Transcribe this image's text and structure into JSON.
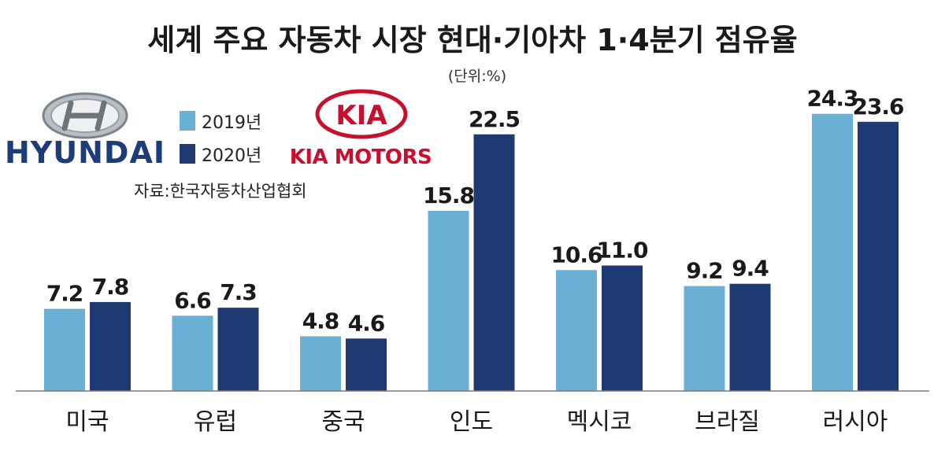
{
  "chart_data": {
    "type": "bar",
    "title": "세계 주요 자동차 시장 현대·기아차 1·4분기 점유율",
    "unit": "(단위:%)",
    "source": "자료:한국자동차산업협회",
    "categories": [
      "미국",
      "유럽",
      "중국",
      "인도",
      "멕시코",
      "브라질",
      "러시아"
    ],
    "series": [
      {
        "name": "2019년",
        "color": "#6ab0d4",
        "values": [
          7.2,
          6.6,
          4.8,
          15.8,
          10.6,
          9.2,
          24.3
        ],
        "labels": [
          "7.2",
          "6.6",
          "4.8",
          "15.8",
          "10.6",
          "9.2",
          "24.3"
        ]
      },
      {
        "name": "2020년",
        "color": "#1f3a73",
        "values": [
          7.8,
          7.3,
          4.6,
          22.5,
          11.0,
          9.4,
          23.6
        ],
        "labels": [
          "7.8",
          "7.3",
          "4.6",
          "22.5",
          "11.0",
          "9.4",
          "23.6"
        ]
      }
    ],
    "ylim": [
      0,
      25
    ],
    "grid": false,
    "legend_position": "top-left"
  },
  "logos": {
    "hyundai": "HYUNDAI",
    "kia_mark": "KIA",
    "kia_motors": "KIA MOTORS"
  }
}
